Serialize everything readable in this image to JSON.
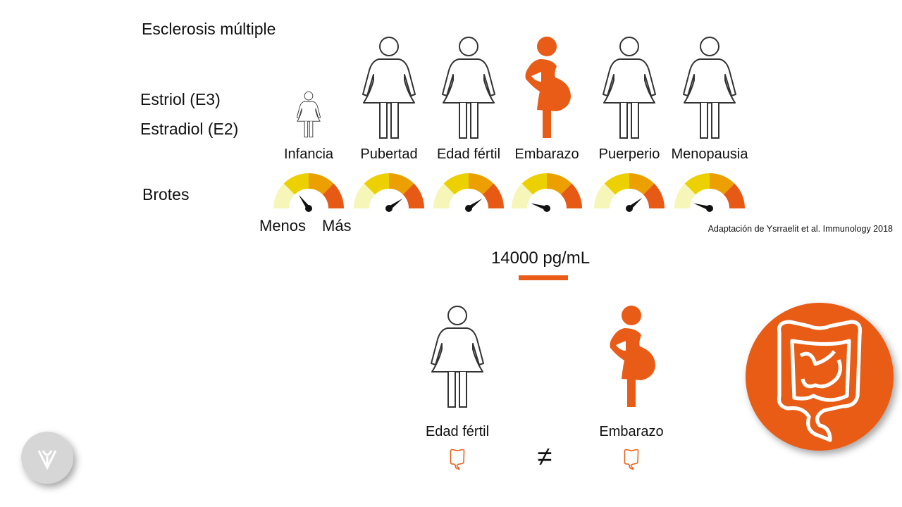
{
  "title": "Esclerosis múltiple",
  "hormones": [
    "Estriol (E3)",
    "Estradiol (E2)"
  ],
  "stages": [
    {
      "label": "Infancia",
      "highlight": false,
      "child": true,
      "relapse_level": 0.3
    },
    {
      "label": "Pubertad",
      "highlight": false,
      "child": false,
      "relapse_level": 0.8
    },
    {
      "label": "Edad fértil",
      "highlight": false,
      "child": false,
      "relapse_level": 0.8
    },
    {
      "label": "Embarazo",
      "highlight": true,
      "child": false,
      "relapse_level": 0.1
    },
    {
      "label": "Puerperio",
      "highlight": false,
      "child": false,
      "relapse_level": 0.78
    },
    {
      "label": "Menopausia",
      "highlight": false,
      "child": false,
      "relapse_level": 0.1
    }
  ],
  "gauge_row_label": "Brotes",
  "gauge_min_label": "Menos",
  "gauge_max_label": "Más",
  "gauge_colors": [
    "#f6f6b9",
    "#ecd000",
    "#eba000",
    "#e65a16"
  ],
  "source": "Adaptación de Ysrraelit et al. Immunology 2018",
  "concentration": "14000 pg/mL",
  "comparison": {
    "left_label": "Edad fértil",
    "right_label": "Embarazo",
    "operator": "≠"
  },
  "accent": "#e85c17",
  "icons": [
    "woman-icon",
    "pregnant-woman-icon",
    "gauge-icon",
    "intestine-icon",
    "logo-icon"
  ]
}
